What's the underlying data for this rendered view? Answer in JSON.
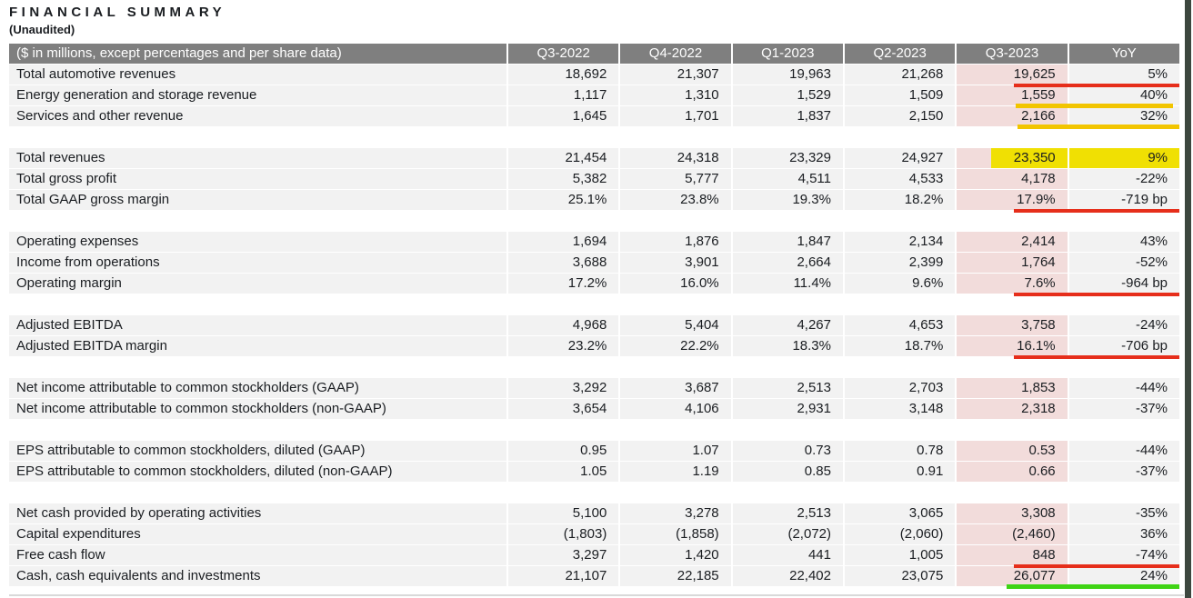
{
  "page": {
    "title": "FINANCIAL SUMMARY",
    "subtitle": "(Unaudited)"
  },
  "colors": {
    "header_bg": "#7f7f7f",
    "header_text": "#ffffff",
    "row_bg": "#f2f2f2",
    "text": "#1a1d21",
    "highlight_column_pink": "#f2dcdb",
    "highlight_yellow": "#f0e003",
    "underline_red": "#e62e1b",
    "underline_gold": "#f2c500",
    "underline_green": "#3fd414",
    "page_edge_bar": "#3c463e",
    "bottom_border": "#d9d9d9"
  },
  "table": {
    "header_label": "($ in millions, except percentages and per share data)",
    "columns": [
      "Q3-2022",
      "Q4-2022",
      "Q1-2023",
      "Q2-2023",
      "Q3-2023",
      "YoY"
    ],
    "sections": [
      {
        "rows": [
          {
            "label": "Total automotive revenues",
            "values": [
              "18,692",
              "21,307",
              "19,963",
              "21,268",
              "19,625",
              "5%"
            ],
            "underline": "red"
          },
          {
            "label": "Energy generation and storage revenue",
            "values": [
              "1,117",
              "1,310",
              "1,529",
              "1,509",
              "1,559",
              "40%"
            ],
            "underline": "yellow-short"
          },
          {
            "label": "Services and other revenue",
            "values": [
              "1,645",
              "1,701",
              "1,837",
              "2,150",
              "2,166",
              "32%"
            ],
            "underline": "yellow"
          }
        ]
      },
      {
        "rows": [
          {
            "label": "Total revenues",
            "values": [
              "21,454",
              "24,318",
              "23,329",
              "24,927",
              "23,350",
              "9%"
            ],
            "highlight": "yellow"
          },
          {
            "label": "Total gross profit",
            "values": [
              "5,382",
              "5,777",
              "4,511",
              "4,533",
              "4,178",
              "-22%"
            ]
          },
          {
            "label": "Total GAAP gross margin",
            "values": [
              "25.1%",
              "23.8%",
              "19.3%",
              "18.2%",
              "17.9%",
              "-719 bp"
            ],
            "underline": "red"
          }
        ]
      },
      {
        "rows": [
          {
            "label": "Operating expenses",
            "values": [
              "1,694",
              "1,876",
              "1,847",
              "2,134",
              "2,414",
              "43%"
            ]
          },
          {
            "label": "Income from operations",
            "values": [
              "3,688",
              "3,901",
              "2,664",
              "2,399",
              "1,764",
              "-52%"
            ]
          },
          {
            "label": "Operating margin",
            "values": [
              "17.2%",
              "16.0%",
              "11.4%",
              "9.6%",
              "7.6%",
              "-964 bp"
            ],
            "underline": "red"
          }
        ]
      },
      {
        "rows": [
          {
            "label": "Adjusted EBITDA",
            "values": [
              "4,968",
              "5,404",
              "4,267",
              "4,653",
              "3,758",
              "-24%"
            ]
          },
          {
            "label": "Adjusted EBITDA margin",
            "values": [
              "23.2%",
              "22.2%",
              "18.3%",
              "18.7%",
              "16.1%",
              "-706 bp"
            ],
            "underline": "red"
          }
        ]
      },
      {
        "rows": [
          {
            "label": "Net income attributable to common stockholders (GAAP)",
            "values": [
              "3,292",
              "3,687",
              "2,513",
              "2,703",
              "1,853",
              "-44%"
            ]
          },
          {
            "label": "Net income attributable to common stockholders (non-GAAP)",
            "values": [
              "3,654",
              "4,106",
              "2,931",
              "3,148",
              "2,318",
              "-37%"
            ]
          }
        ]
      },
      {
        "rows": [
          {
            "label": "EPS attributable to common stockholders, diluted (GAAP)",
            "values": [
              "0.95",
              "1.07",
              "0.73",
              "0.78",
              "0.53",
              "-44%"
            ]
          },
          {
            "label": "EPS attributable to common stockholders, diluted (non-GAAP)",
            "values": [
              "1.05",
              "1.19",
              "0.85",
              "0.91",
              "0.66",
              "-37%"
            ]
          }
        ]
      },
      {
        "rows": [
          {
            "label": "Net cash provided by operating activities",
            "values": [
              "5,100",
              "3,278",
              "2,513",
              "3,065",
              "3,308",
              "-35%"
            ]
          },
          {
            "label": "Capital expenditures",
            "values": [
              "(1,803)",
              "(1,858)",
              "(2,072)",
              "(2,060)",
              "(2,460)",
              "36%"
            ]
          },
          {
            "label": "Free cash flow",
            "values": [
              "3,297",
              "1,420",
              "441",
              "1,005",
              "848",
              "-74%"
            ],
            "underline": "red"
          },
          {
            "label": "Cash, cash equivalents and investments",
            "values": [
              "21,107",
              "22,185",
              "22,402",
              "23,075",
              "26,077",
              "24%"
            ],
            "underline": "green"
          }
        ]
      }
    ]
  }
}
